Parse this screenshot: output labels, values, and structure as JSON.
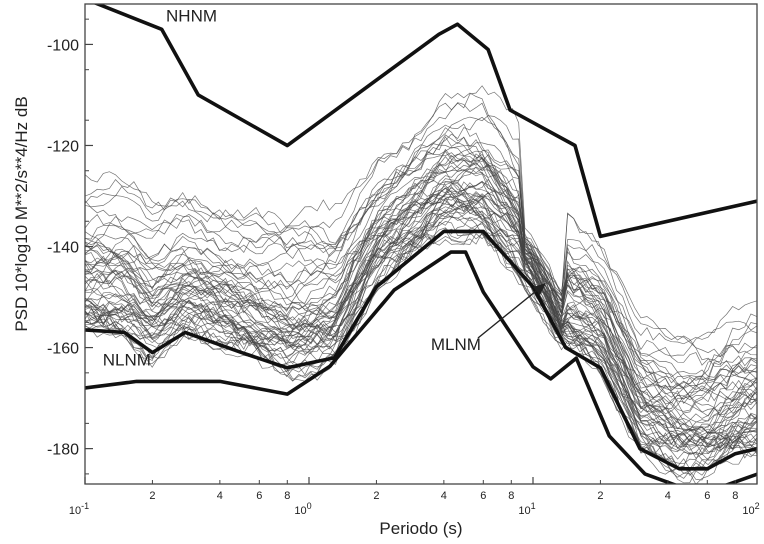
{
  "chart_data": {
    "type": "line",
    "xlabel": "Periodo (s)",
    "ylabel": "PSD 10*log10 M**2/s**4/Hz dB",
    "xscale": "log",
    "xlim": [
      0.1,
      100
    ],
    "ylim": [
      -187,
      -92
    ],
    "x_ticks": [
      {
        "value": 0.1,
        "label": "10",
        "exp": "-1"
      },
      {
        "value": 1,
        "label": "10",
        "exp": "0"
      },
      {
        "value": 10,
        "label": "10",
        "exp": "1"
      },
      {
        "value": 100,
        "label": "10",
        "exp": "2"
      }
    ],
    "x_minor_ticks": [
      {
        "value": 0.2,
        "label": "2"
      },
      {
        "value": 0.4,
        "label": "4"
      },
      {
        "value": 0.6,
        "label": "6"
      },
      {
        "value": 0.8,
        "label": "8"
      },
      {
        "value": 2,
        "label": "2"
      },
      {
        "value": 4,
        "label": "4"
      },
      {
        "value": 6,
        "label": "6"
      },
      {
        "value": 8,
        "label": "8"
      },
      {
        "value": 20,
        "label": "2"
      },
      {
        "value": 40,
        "label": "4"
      },
      {
        "value": 60,
        "label": "6"
      },
      {
        "value": 80,
        "label": "8"
      }
    ],
    "y_ticks": [
      {
        "value": -100,
        "label": "-100"
      },
      {
        "value": -120,
        "label": "-120"
      },
      {
        "value": -140,
        "label": "-140"
      },
      {
        "value": -160,
        "label": "-160"
      },
      {
        "value": -180,
        "label": "-180"
      }
    ],
    "reference_curves": [
      {
        "name": "NHNM",
        "x": [
          0.1,
          0.22,
          0.32,
          0.8,
          3.8,
          4.6,
          6.3,
          7.9,
          15.4,
          20,
          100
        ],
        "y": [
          -91,
          -97,
          -110,
          -120,
          -98,
          -96,
          -101,
          -113,
          -120,
          -138,
          -131
        ]
      },
      {
        "name": "NLNM",
        "x": [
          0.1,
          0.17,
          0.4,
          0.8,
          1.24,
          2.4,
          4.3,
          5,
          6,
          10,
          12,
          15.6,
          21.9,
          31.6,
          45,
          70,
          101
        ],
        "y": [
          -168,
          -166.7,
          -166.7,
          -169.2,
          -163.7,
          -148.6,
          -141.1,
          -141.1,
          -149,
          -163.8,
          -166.2,
          -162.1,
          -177.5,
          -185,
          -187.5,
          -187.5,
          -185
        ]
      },
      {
        "name": "MLNM",
        "x": [
          0.1,
          0.15,
          0.2,
          0.28,
          0.5,
          0.8,
          1.3,
          2,
          4,
          6,
          10,
          14,
          20,
          30,
          45,
          60,
          80,
          100
        ],
        "y": [
          -156.5,
          -157,
          -161,
          -157,
          -161,
          -164,
          -162,
          -148,
          -137,
          -137,
          -148,
          -160,
          -164,
          -180,
          -184,
          -184,
          -181,
          -180
        ]
      }
    ],
    "station_curve_count": 60,
    "station_curve_note": "dense bundle of individual station PSD curves (values approximate)",
    "annotations": [
      {
        "text": "NHNM",
        "x": 0.23,
        "y": -95.5
      },
      {
        "text": "NLNM",
        "x": 0.12,
        "y": -163.5
      },
      {
        "text": "MLNM",
        "x": 3.5,
        "y": -160.5
      }
    ],
    "grid": false,
    "legend": "none"
  }
}
